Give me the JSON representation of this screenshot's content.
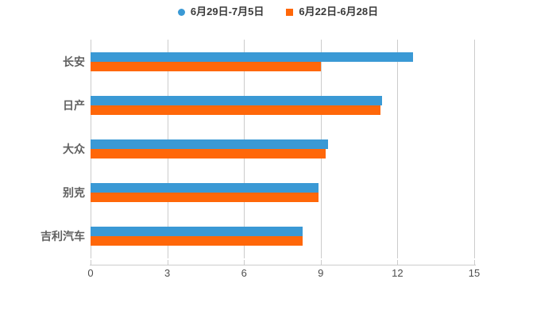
{
  "chart_data": {
    "type": "bar",
    "orientation": "horizontal",
    "title": "",
    "categories": [
      "长安",
      "日产",
      "大众",
      "别克",
      "吉利汽车"
    ],
    "series": [
      {
        "name": "6月29日-7月5日",
        "color": "#3A99D5",
        "marker": "circle",
        "values": [
          12.6,
          11.4,
          9.3,
          8.9,
          8.3
        ]
      },
      {
        "name": "6月22日-6月28日",
        "color": "#FF6709",
        "marker": "square",
        "values": [
          9.0,
          11.35,
          9.2,
          8.9,
          8.3
        ]
      }
    ],
    "x_axis": {
      "min": 0,
      "max": 15,
      "ticks": [
        0,
        3,
        6,
        9,
        12,
        15
      ]
    },
    "y_axis": {
      "label": ""
    },
    "legend_position": "top-center",
    "grid": true
  },
  "palette": {
    "background": "#ffffff",
    "gridline": "#cccccc",
    "axis_line": "#cccccc",
    "x_tick_label": "#4d4d4d",
    "y_category_label": "#606060",
    "legend_text": "#3a3a3a"
  }
}
